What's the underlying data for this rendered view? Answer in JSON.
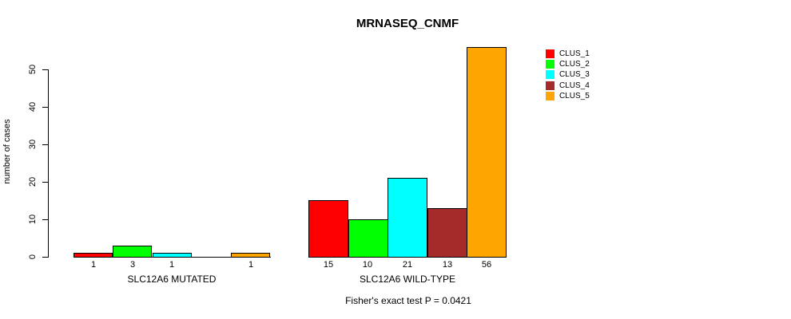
{
  "title": "MRNASEQ_CNMF",
  "subtitle": "Fisher's exact test P = 0.0421",
  "y_axis_label": "number of cases",
  "chart_data": {
    "type": "bar",
    "title": "MRNASEQ_CNMF",
    "xlabel": "",
    "ylabel": "number of cases",
    "annotation": "Fisher's exact test P = 0.0421",
    "categories": [
      "SLC12A6 MUTATED",
      "SLC12A6 WILD-TYPE"
    ],
    "series": [
      {
        "name": "CLUS_1",
        "color": "#FF0000",
        "values": [
          1,
          15
        ]
      },
      {
        "name": "CLUS_2",
        "color": "#00FF00",
        "values": [
          3,
          10
        ]
      },
      {
        "name": "CLUS_3",
        "color": "#00FFFF",
        "values": [
          1,
          21
        ]
      },
      {
        "name": "CLUS_4",
        "color": "#A52A2A",
        "values": [
          0,
          13
        ]
      },
      {
        "name": "CLUS_5",
        "color": "#FFA500",
        "values": [
          1,
          56
        ]
      }
    ],
    "bar_value_labels": [
      [
        "1",
        "3",
        "1",
        "",
        "1"
      ],
      [
        "15",
        "10",
        "21",
        "13",
        "56"
      ]
    ],
    "yticks": [
      0,
      10,
      20,
      30,
      40,
      50
    ],
    "ylim": [
      0,
      56.5
    ],
    "grid": false,
    "legend_position": "right",
    "bar_border_color": "#000000",
    "background_color": "#FFFFFF"
  }
}
